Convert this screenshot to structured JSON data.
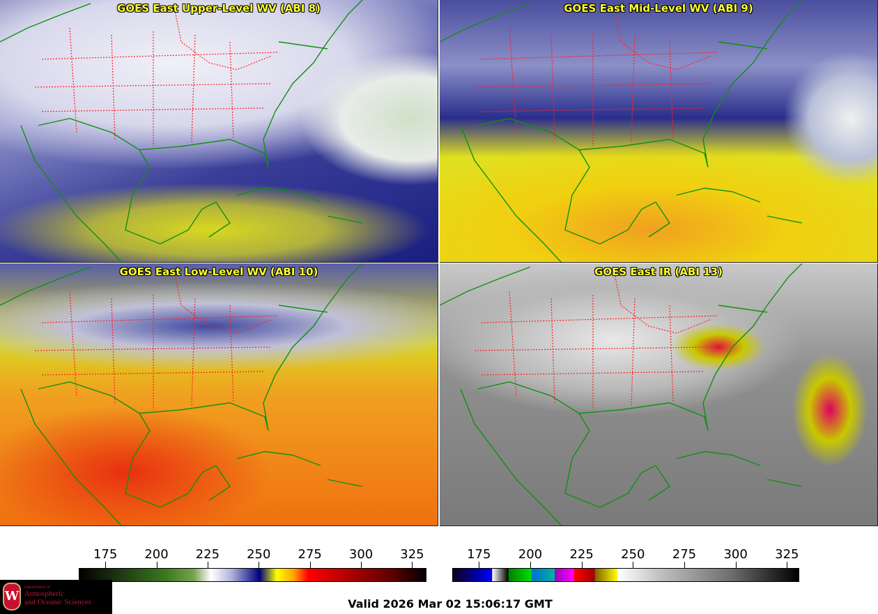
{
  "panels": [
    {
      "title": "GOES East Upper-Level WV (ABI 8)"
    },
    {
      "title": "GOES East Mid-Level WV (ABI 9)"
    },
    {
      "title": "GOES East Low-Level WV (ABI 10)"
    },
    {
      "title": "GOES East IR (ABI 13)"
    }
  ],
  "colorbars": [
    {
      "name": "water-vapor",
      "range": [
        162,
        332
      ],
      "ticks": [
        "175",
        "200",
        "225",
        "250",
        "275",
        "300",
        "325"
      ]
    },
    {
      "name": "infrared",
      "range": [
        162,
        331
      ],
      "ticks": [
        "175",
        "200",
        "225",
        "250",
        "275",
        "300",
        "325"
      ]
    }
  ],
  "logo": {
    "crest": "W",
    "line0": "Department of",
    "line1": "Atmospheric",
    "line2": "and Oceanic Sciences"
  },
  "valid_time": "Valid 2026 Mar 02 15:06:17 GMT",
  "colors": {
    "title": "#ffff30",
    "coast": "#109010",
    "states": "#ff2020",
    "accent": "#c8102e"
  }
}
